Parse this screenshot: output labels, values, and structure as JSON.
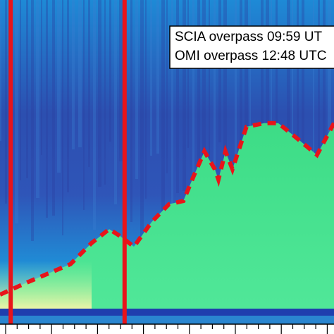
{
  "chart_data": {
    "type": "line",
    "annotations": [
      "SCIA overpass 09:59 UT",
      "OMI overpass 12:48 UTC"
    ],
    "x": [
      0,
      8.4,
      21.1,
      27.4,
      32.7,
      35.9,
      40.1,
      45.4,
      50.6,
      54.9,
      58.0,
      61.2,
      64.3,
      65.4,
      67.5,
      69.6,
      73.8,
      79.1,
      83.3,
      88.6,
      94.9,
      100
    ],
    "series": [
      {
        "color": "#e8141a",
        "values": [
          9.1,
          13.0,
          18.5,
          25.0,
          29.3,
          27.2,
          23.9,
          31.5,
          37.0,
          38.0,
          45.7,
          53.3,
          47.8,
          44.6,
          53.3,
          47.8,
          60.9,
          62.0,
          62.0,
          57.6,
          52.2,
          62.0
        ]
      }
    ],
    "markers": {
      "color": "#e8141a",
      "x": [
        3.2,
        37.3
      ]
    },
    "xlim": [
      0,
      100
    ],
    "ylim": [
      0,
      100
    ]
  }
}
